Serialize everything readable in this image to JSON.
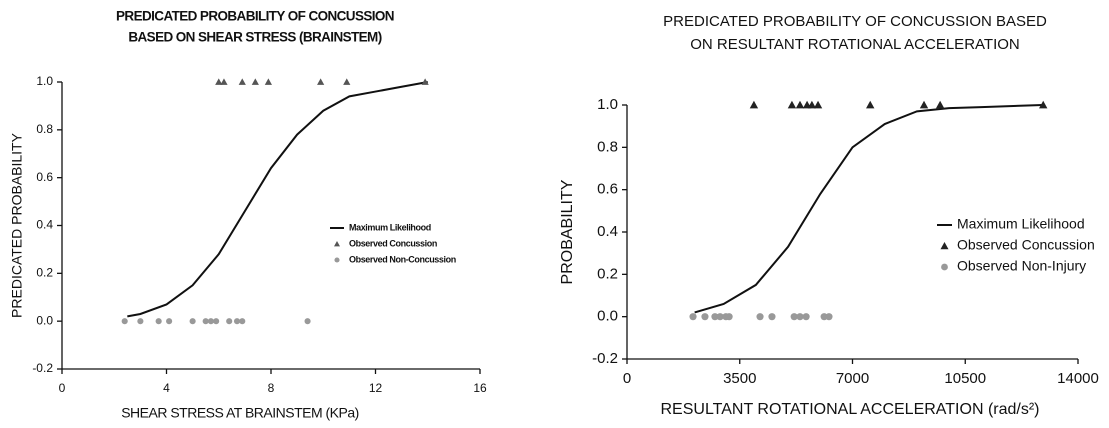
{
  "chart_data": [
    {
      "type": "line",
      "title": [
        "PREDICATED PROBABILITY OF CONCUSSION",
        "BASED ON SHEAR STRESS (BRAINSTEM)"
      ],
      "x_label": "SHEAR STRESS AT BRAINSTEM (KPa)",
      "y_label": "PREDICATED PROBABILITY",
      "xlim": [
        0,
        16
      ],
      "xticks": [
        0,
        4,
        8,
        12,
        16
      ],
      "ylim": [
        -0.2,
        1.0
      ],
      "yticks": [
        -0.2,
        {
          "value": 0,
          "label": "0.0"
        },
        0.2,
        0.4,
        0.6,
        0.8,
        {
          "value": 1,
          "label": "1.0"
        }
      ],
      "series": [
        {
          "name": "Maximum Likelihood",
          "type": "line",
          "color": "#111111",
          "x": [
            2.5,
            3,
            4,
            5,
            6,
            7,
            8,
            9,
            10,
            11,
            12,
            13,
            14
          ],
          "values": [
            0.02,
            0.03,
            0.07,
            0.15,
            0.28,
            0.46,
            0.64,
            0.78,
            0.88,
            0.94,
            0.96,
            0.98,
            1.0
          ]
        },
        {
          "name": "Observed Concussion",
          "type": "scatter",
          "marker": "triangle",
          "color": "#555555",
          "x": [
            6.0,
            6.2,
            6.9,
            7.4,
            7.9,
            9.9,
            10.9,
            13.9
          ],
          "values": [
            1,
            1,
            1,
            1,
            1,
            1,
            1,
            1
          ]
        },
        {
          "name": "Observed Non-Concussion",
          "type": "scatter",
          "marker": "circle",
          "color": "#999999",
          "x": [
            2.4,
            3.0,
            3.7,
            4.1,
            5.0,
            5.5,
            5.7,
            5.9,
            6.4,
            6.7,
            6.9,
            9.4
          ],
          "values": [
            0,
            0,
            0,
            0,
            0,
            0,
            0,
            0,
            0,
            0,
            0,
            0
          ]
        }
      ]
    },
    {
      "type": "line",
      "title": [
        "PREDICATED PROBABILITY OF CONCUSSION BASED",
        "ON RESULTANT ROTATIONAL ACCELERATION"
      ],
      "x_label": "RESULTANT ROTATIONAL ACCELERATION (rad/s²)",
      "y_label": "PROBABILITY",
      "xlim": [
        0,
        14000
      ],
      "xticks": [
        0,
        3500,
        7000,
        10500,
        14000
      ],
      "ylim": [
        -0.2,
        1.0
      ],
      "yticks": [
        -0.2,
        {
          "value": 0,
          "label": "0.0"
        },
        0.2,
        0.4,
        0.6,
        0.8,
        {
          "value": 1,
          "label": "1.0"
        }
      ],
      "series": [
        {
          "name": "Maximum Likelihood",
          "type": "line",
          "color": "#111111",
          "x": [
            2100,
            3000,
            4000,
            5000,
            6000,
            7000,
            8000,
            9000,
            10000,
            11000,
            12900
          ],
          "values": [
            0.02,
            0.06,
            0.15,
            0.33,
            0.58,
            0.8,
            0.91,
            0.97,
            0.985,
            0.99,
            1.0
          ]
        },
        {
          "name": "Observed Concussion",
          "type": "scatter",
          "marker": "triangle",
          "color": "#222222",
          "x": [
            3940,
            5120,
            5370,
            5590,
            5740,
            5930,
            7550,
            9220,
            9720,
            12920
          ],
          "values": [
            1,
            1,
            1,
            1,
            1,
            1,
            1,
            1,
            1,
            1
          ]
        },
        {
          "name": "Observed Non-Injury",
          "type": "scatter",
          "marker": "circle",
          "color": "#999999",
          "x": [
            2050,
            2420,
            2730,
            2890,
            3070,
            3170,
            4130,
            4500,
            5190,
            5370,
            5560,
            6120,
            6270
          ],
          "values": [
            0,
            0,
            0,
            0,
            0,
            0,
            0,
            0,
            0,
            0,
            0,
            0,
            0
          ]
        }
      ]
    }
  ]
}
